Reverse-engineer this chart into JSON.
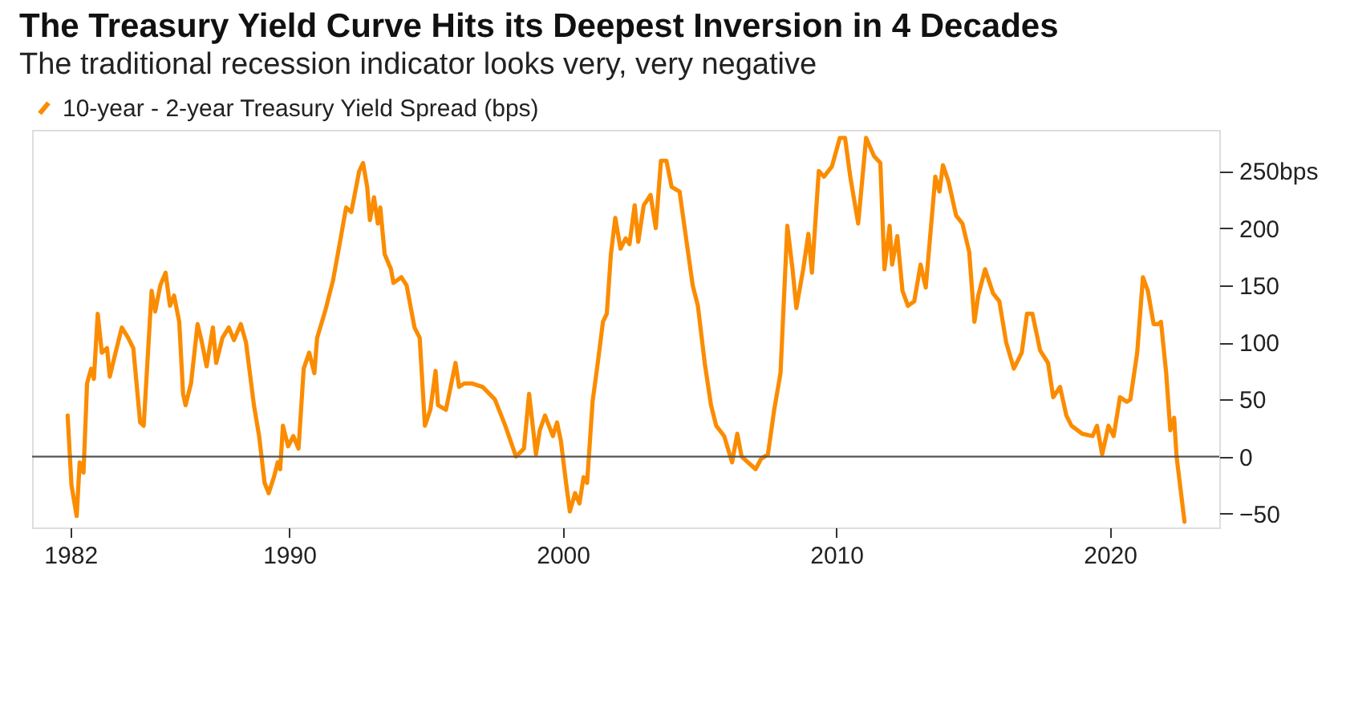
{
  "chart_data": {
    "type": "line",
    "title": "The Treasury Yield Curve Hits its Deepest Inversion in 4 Decades",
    "subtitle": "The traditional recession indicator looks very, very negative",
    "legend": "top left",
    "grid": false,
    "marker": "none",
    "line_style": "solid",
    "xlim": [
      1980.6,
      2024.0
    ],
    "xticks": [
      1982,
      1990,
      2000,
      2010,
      2020
    ],
    "ylim": [
      -62,
      286
    ],
    "yticks": [
      {
        "value": 250,
        "label": "250bps"
      },
      200,
      150,
      100,
      50,
      0,
      -50
    ],
    "ref_lines": [
      {
        "axis": "y",
        "value": 0,
        "color": "#555555"
      }
    ],
    "series": [
      {
        "name": "10-year - 2-year Treasury Yield Spread (bps)",
        "color": "#fb8c00",
        "x": [
          1981.9,
          1982.04,
          1982.23,
          1982.34,
          1982.48,
          1982.61,
          1982.76,
          1982.86,
          1983.0,
          1983.15,
          1983.34,
          1983.44,
          1983.63,
          1983.88,
          1984.11,
          1984.3,
          1984.55,
          1984.68,
          1984.97,
          1985.1,
          1985.29,
          1985.48,
          1985.64,
          1985.79,
          1985.98,
          1986.12,
          1986.21,
          1986.41,
          1986.65,
          1986.79,
          1986.98,
          1987.21,
          1987.33,
          1987.56,
          1987.79,
          1987.98,
          1988.23,
          1988.42,
          1988.71,
          1988.9,
          1989.1,
          1989.25,
          1989.44,
          1989.58,
          1989.67,
          1989.77,
          1989.96,
          1990.15,
          1990.34,
          1990.53,
          1990.73,
          1990.92,
          1991.02,
          1991.31,
          1991.6,
          1991.88,
          1992.08,
          1992.27,
          1992.56,
          1992.7,
          1992.85,
          1992.95,
          1993.1,
          1993.24,
          1993.33,
          1993.49,
          1993.72,
          1993.81,
          1994.1,
          1994.29,
          1994.58,
          1994.77,
          1994.96,
          1995.16,
          1995.35,
          1995.44,
          1995.73,
          1996.08,
          1996.21,
          1996.4,
          1996.69,
          1997.07,
          1997.52,
          1997.9,
          1998.29,
          1998.58,
          1998.77,
          1999.02,
          1999.16,
          1999.35,
          1999.64,
          1999.79,
          1999.93,
          2000.12,
          2000.26,
          2000.45,
          2000.61,
          2000.76,
          2000.89,
          2001.09,
          2001.28,
          2001.47,
          2001.61,
          2001.76,
          2001.92,
          2002.11,
          2002.3,
          2002.44,
          2002.63,
          2002.76,
          2002.96,
          2003.21,
          2003.4,
          2003.59,
          2003.79,
          2003.98,
          2004.27,
          2004.55,
          2004.75,
          2004.94,
          2005.19,
          2005.42,
          2005.61,
          2005.9,
          2006.19,
          2006.38,
          2006.54,
          2006.77,
          2007.05,
          2007.25,
          2007.5,
          2007.73,
          2007.96,
          2008.21,
          2008.4,
          2008.54,
          2008.79,
          2008.98,
          2009.11,
          2009.36,
          2009.55,
          2009.84,
          2010.13,
          2010.32,
          2010.51,
          2010.8,
          2011.09,
          2011.38,
          2011.61,
          2011.76,
          2011.95,
          2012.04,
          2012.23,
          2012.42,
          2012.62,
          2012.85,
          2013.08,
          2013.27,
          2013.62,
          2013.77,
          2013.9,
          2014.1,
          2014.38,
          2014.61,
          2014.86,
          2015.05,
          2015.19,
          2015.44,
          2015.73,
          2015.96,
          2016.21,
          2016.49,
          2016.78,
          2016.97,
          2017.17,
          2017.45,
          2017.74,
          2017.93,
          2018.18,
          2018.41,
          2018.6,
          2018.99,
          2019.37,
          2019.53,
          2019.72,
          2019.95,
          2020.14,
          2020.37,
          2020.62,
          2020.75,
          2021.0,
          2021.21,
          2021.39,
          2021.6,
          2021.77,
          2021.87,
          2022.06,
          2022.21,
          2022.35,
          2022.44,
          2022.73
        ],
        "values": [
          36,
          -25,
          -52,
          -5,
          -14,
          64,
          77,
          68,
          125,
          91,
          95,
          70,
          89,
          113,
          104,
          95,
          30,
          27,
          145,
          127,
          150,
          161,
          132,
          141,
          118,
          55,
          45,
          64,
          116,
          102,
          79,
          113,
          82,
          104,
          113,
          102,
          116,
          100,
          45,
          18,
          -23,
          -32,
          -18,
          -5,
          -11,
          27,
          9,
          18,
          7,
          77,
          91,
          73,
          104,
          127,
          154,
          191,
          218,
          214,
          250,
          257,
          236,
          207,
          227,
          204,
          218,
          177,
          164,
          152,
          157,
          150,
          113,
          104,
          27,
          41,
          75,
          45,
          41,
          82,
          61,
          64,
          64,
          61,
          50,
          27,
          0,
          7,
          55,
          2,
          23,
          36,
          18,
          30,
          14,
          -23,
          -48,
          -32,
          -41,
          -18,
          -23,
          48,
          82,
          118,
          125,
          177,
          209,
          182,
          191,
          186,
          220,
          188,
          220,
          229,
          200,
          259,
          259,
          236,
          232,
          184,
          150,
          132,
          82,
          45,
          27,
          18,
          -5,
          20,
          0,
          -5,
          -11,
          -2,
          2,
          41,
          73,
          202,
          164,
          130,
          164,
          195,
          161,
          250,
          245,
          254,
          279,
          279,
          245,
          204,
          279,
          263,
          257,
          164,
          202,
          168,
          193,
          145,
          132,
          136,
          168,
          148,
          245,
          232,
          255,
          241,
          211,
          204,
          179,
          118,
          141,
          164,
          143,
          136,
          100,
          77,
          91,
          125,
          125,
          93,
          82,
          52,
          61,
          36,
          27,
          20,
          18,
          27,
          2,
          27,
          18,
          52,
          48,
          50,
          91,
          157,
          145,
          116,
          116,
          118,
          73,
          23,
          34,
          0,
          -57
        ]
      }
    ]
  }
}
